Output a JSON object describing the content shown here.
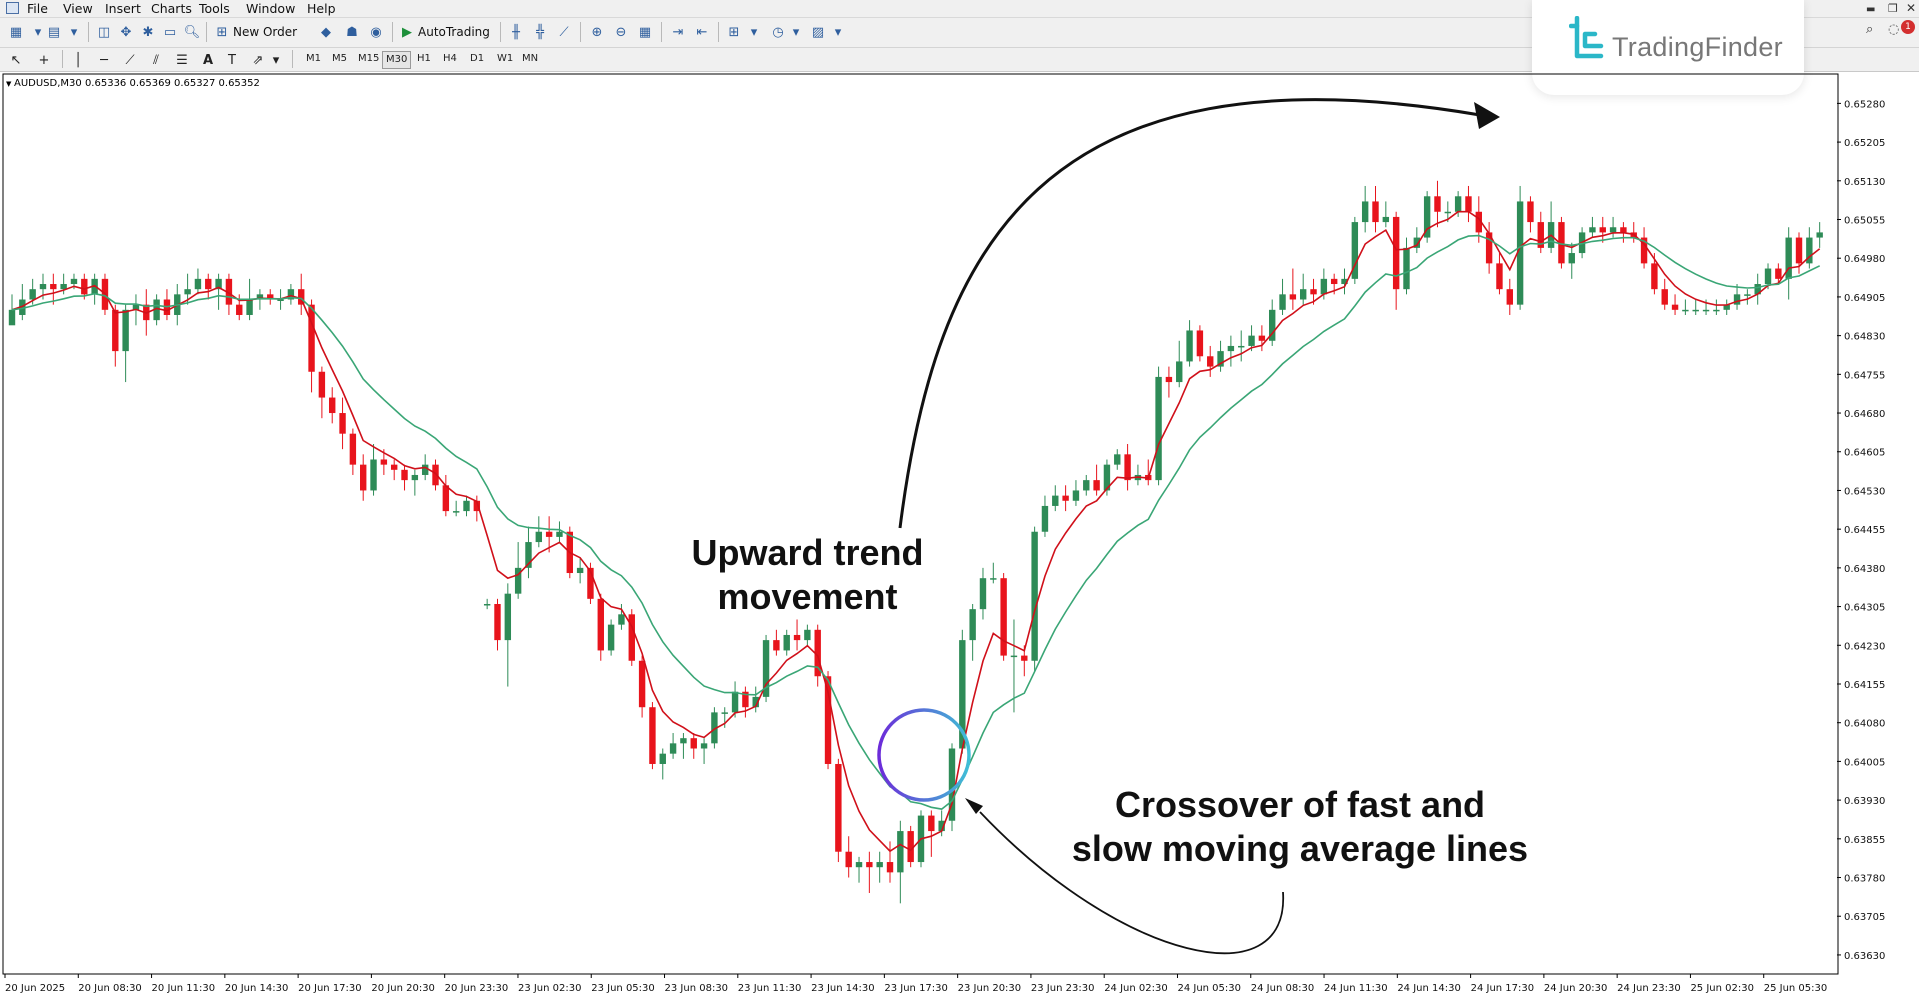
{
  "menu": [
    "File",
    "View",
    "Insert",
    "Charts",
    "Tools",
    "Window",
    "Help"
  ],
  "toolbar": {
    "new_order_label": "New Order",
    "autotrading_label": "AutoTrading",
    "timeframes": [
      "M1",
      "M5",
      "M15",
      "M30",
      "H1",
      "H4",
      "D1",
      "W1",
      "MN"
    ],
    "active_timeframe": "M30",
    "notification_count": "1"
  },
  "brand": {
    "name": "TradingFinder",
    "accent": "#2bb7c8"
  },
  "chart": {
    "header": "AUDUSD,M30  0.65336 0.65369 0.65327 0.65352",
    "bull_color": "#2e8b57",
    "bear_color": "#e8141c",
    "fast_ma_color": "#d0101a",
    "slow_ma_color": "#3aa676"
  },
  "annotations": {
    "upward_line1": "Upward trend",
    "upward_line2": "movement",
    "crossover_line1": "Crossover of fast and",
    "crossover_line2": "slow moving average lines"
  },
  "chart_data": {
    "type": "candlestick",
    "symbol": "AUDUSD",
    "timeframe": "M30",
    "ylim": [
      0.63595,
      0.65335
    ],
    "price_ticks": [
      "0.65280",
      "0.65205",
      "0.65130",
      "0.65055",
      "0.64980",
      "0.64905",
      "0.64830",
      "0.64755",
      "0.64680",
      "0.64605",
      "0.64530",
      "0.64455",
      "0.64380",
      "0.64305",
      "0.64230",
      "0.64155",
      "0.64080",
      "0.64005",
      "0.63930",
      "0.63855",
      "0.63780",
      "0.63705",
      "0.63630"
    ],
    "time_ticks": [
      "20 Jun 2025",
      "20 Jun 08:30",
      "20 Jun 11:30",
      "20 Jun 14:30",
      "20 Jun 17:30",
      "20 Jun 20:30",
      "20 Jun 23:30",
      "23 Jun 02:30",
      "23 Jun 05:30",
      "23 Jun 08:30",
      "23 Jun 11:30",
      "23 Jun 14:30",
      "23 Jun 17:30",
      "23 Jun 20:30",
      "23 Jun 23:30",
      "24 Jun 02:30",
      "24 Jun 05:30",
      "24 Jun 08:30",
      "24 Jun 11:30",
      "24 Jun 14:30",
      "24 Jun 17:30",
      "24 Jun 20:30",
      "24 Jun 23:30",
      "25 Jun 02:30",
      "25 Jun 05:30"
    ],
    "candles": [
      [
        0.6485,
        0.6488,
        0.6486,
        0.6491
      ],
      [
        0.6487,
        0.649,
        0.6486,
        0.6493
      ],
      [
        0.649,
        0.6492,
        0.6489,
        0.6494
      ],
      [
        0.6492,
        0.6493,
        0.649,
        0.6495
      ],
      [
        0.6493,
        0.6492,
        0.6489,
        0.6495
      ],
      [
        0.6492,
        0.6493,
        0.6491,
        0.6495
      ],
      [
        0.6493,
        0.6494,
        0.6492,
        0.6495
      ],
      [
        0.6494,
        0.6491,
        0.649,
        0.6495
      ],
      [
        0.6491,
        0.6494,
        0.6489,
        0.6495
      ],
      [
        0.6494,
        0.6488,
        0.6487,
        0.6495
      ],
      [
        0.6488,
        0.648,
        0.6477,
        0.6489
      ],
      [
        0.648,
        0.6488,
        0.6474,
        0.6489
      ],
      [
        0.6488,
        0.6489,
        0.6485,
        0.6491
      ],
      [
        0.6489,
        0.6486,
        0.6483,
        0.6492
      ],
      [
        0.6486,
        0.649,
        0.6485,
        0.6491
      ],
      [
        0.649,
        0.6487,
        0.6486,
        0.6492
      ],
      [
        0.6487,
        0.6491,
        0.6485,
        0.6493
      ],
      [
        0.6491,
        0.6492,
        0.6489,
        0.6495
      ],
      [
        0.6492,
        0.6494,
        0.6491,
        0.6496
      ],
      [
        0.6494,
        0.6492,
        0.649,
        0.6495
      ],
      [
        0.6492,
        0.6494,
        0.6488,
        0.6495
      ],
      [
        0.6494,
        0.6489,
        0.6487,
        0.6495
      ],
      [
        0.6489,
        0.6487,
        0.6486,
        0.6491
      ],
      [
        0.6487,
        0.649,
        0.6486,
        0.6494
      ],
      [
        0.649,
        0.6491,
        0.6488,
        0.6492
      ],
      [
        0.6491,
        0.649,
        0.6489,
        0.6492
      ],
      [
        0.649,
        0.649,
        0.6488,
        0.6492
      ],
      [
        0.649,
        0.6492,
        0.6489,
        0.6493
      ],
      [
        0.6492,
        0.6489,
        0.6487,
        0.6495
      ],
      [
        0.6489,
        0.6476,
        0.6472,
        0.649
      ],
      [
        0.6476,
        0.6471,
        0.6467,
        0.6477
      ],
      [
        0.6471,
        0.6468,
        0.6466,
        0.6473
      ],
      [
        0.6468,
        0.6464,
        0.6461,
        0.6471
      ],
      [
        0.6464,
        0.6458,
        0.6456,
        0.6465
      ],
      [
        0.6458,
        0.6453,
        0.6451,
        0.646
      ],
      [
        0.6453,
        0.6459,
        0.6452,
        0.6462
      ],
      [
        0.6459,
        0.6458,
        0.6456,
        0.6461
      ],
      [
        0.6458,
        0.6457,
        0.6455,
        0.6459
      ],
      [
        0.6457,
        0.6455,
        0.6453,
        0.6458
      ],
      [
        0.6455,
        0.6456,
        0.6452,
        0.6457
      ],
      [
        0.6456,
        0.6458,
        0.6455,
        0.646
      ],
      [
        0.6458,
        0.6454,
        0.6453,
        0.6459
      ],
      [
        0.6454,
        0.6449,
        0.6448,
        0.6456
      ],
      [
        0.6449,
        0.6449,
        0.6448,
        0.6451
      ],
      [
        0.6449,
        0.6451,
        0.6448,
        0.6452
      ],
      [
        0.6451,
        0.6449,
        0.6447,
        0.6452
      ],
      [
        0.6431,
        0.6431,
        0.643,
        0.6432
      ],
      [
        0.6431,
        0.6424,
        0.6422,
        0.6432
      ],
      [
        0.6424,
        0.6433,
        0.6415,
        0.6435
      ],
      [
        0.6433,
        0.6438,
        0.6432,
        0.6443
      ],
      [
        0.6438,
        0.6443,
        0.6436,
        0.6446
      ],
      [
        0.6443,
        0.6445,
        0.6442,
        0.6448
      ],
      [
        0.6445,
        0.6444,
        0.6441,
        0.6448
      ],
      [
        0.6444,
        0.6445,
        0.6443,
        0.6447
      ],
      [
        0.6445,
        0.6437,
        0.6436,
        0.6446
      ],
      [
        0.6437,
        0.6438,
        0.6435,
        0.644
      ],
      [
        0.6438,
        0.6432,
        0.6431,
        0.6439
      ],
      [
        0.6432,
        0.6422,
        0.642,
        0.6433
      ],
      [
        0.6422,
        0.6427,
        0.6421,
        0.6428
      ],
      [
        0.6427,
        0.6429,
        0.6426,
        0.6431
      ],
      [
        0.6429,
        0.642,
        0.6419,
        0.643
      ],
      [
        0.642,
        0.6411,
        0.6409,
        0.6421
      ],
      [
        0.6411,
        0.64,
        0.6399,
        0.6412
      ],
      [
        0.64,
        0.6402,
        0.6397,
        0.6403
      ],
      [
        0.6402,
        0.6404,
        0.6401,
        0.6406
      ],
      [
        0.6404,
        0.6405,
        0.6401,
        0.6406
      ],
      [
        0.6405,
        0.6403,
        0.6401,
        0.6406
      ],
      [
        0.6403,
        0.6404,
        0.64,
        0.6405
      ],
      [
        0.6404,
        0.641,
        0.6403,
        0.6411
      ],
      [
        0.641,
        0.641,
        0.6407,
        0.6411
      ],
      [
        0.641,
        0.6414,
        0.6409,
        0.6416
      ],
      [
        0.6414,
        0.6411,
        0.6409,
        0.6415
      ],
      [
        0.6411,
        0.6413,
        0.641,
        0.6415
      ],
      [
        0.6413,
        0.6424,
        0.6412,
        0.6425
      ],
      [
        0.6424,
        0.6422,
        0.6421,
        0.6426
      ],
      [
        0.6422,
        0.6425,
        0.6421,
        0.6426
      ],
      [
        0.6425,
        0.6424,
        0.6422,
        0.6428
      ],
      [
        0.6424,
        0.6426,
        0.6423,
        0.6427
      ],
      [
        0.6426,
        0.6417,
        0.6415,
        0.6427
      ],
      [
        0.6417,
        0.64,
        0.6399,
        0.6418
      ],
      [
        0.64,
        0.6383,
        0.6381,
        0.6401
      ],
      [
        0.6383,
        0.638,
        0.6378,
        0.6386
      ],
      [
        0.638,
        0.6381,
        0.6377,
        0.6382
      ],
      [
        0.6381,
        0.638,
        0.6375,
        0.6383
      ],
      [
        0.638,
        0.6381,
        0.6377,
        0.6383
      ],
      [
        0.6381,
        0.6379,
        0.6377,
        0.6385
      ],
      [
        0.6379,
        0.6387,
        0.6373,
        0.6389
      ],
      [
        0.6387,
        0.6381,
        0.638,
        0.6388
      ],
      [
        0.6381,
        0.639,
        0.638,
        0.6391
      ],
      [
        0.639,
        0.6387,
        0.6382,
        0.6391
      ],
      [
        0.6387,
        0.6389,
        0.6386,
        0.6391
      ],
      [
        0.6389,
        0.6403,
        0.6387,
        0.6404
      ],
      [
        0.6403,
        0.6424,
        0.6402,
        0.6426
      ],
      [
        0.6424,
        0.643,
        0.642,
        0.6431
      ],
      [
        0.643,
        0.6436,
        0.6428,
        0.6438
      ],
      [
        0.6436,
        0.6436,
        0.6435,
        0.6439
      ],
      [
        0.6436,
        0.6421,
        0.642,
        0.6437
      ],
      [
        0.6421,
        0.6421,
        0.641,
        0.6428
      ],
      [
        0.6421,
        0.642,
        0.6417,
        0.6423
      ],
      [
        0.642,
        0.6445,
        0.6418,
        0.6446
      ],
      [
        0.6445,
        0.645,
        0.6444,
        0.6452
      ],
      [
        0.645,
        0.6452,
        0.6449,
        0.6454
      ],
      [
        0.6452,
        0.6451,
        0.6449,
        0.6454
      ],
      [
        0.6451,
        0.6453,
        0.645,
        0.6455
      ],
      [
        0.6453,
        0.6455,
        0.6452,
        0.6456
      ],
      [
        0.6455,
        0.6453,
        0.6452,
        0.6458
      ],
      [
        0.6453,
        0.6458,
        0.6452,
        0.6459
      ],
      [
        0.6458,
        0.646,
        0.6457,
        0.6461
      ],
      [
        0.646,
        0.6455,
        0.6453,
        0.6462
      ],
      [
        0.6455,
        0.6456,
        0.6454,
        0.6458
      ],
      [
        0.6456,
        0.6455,
        0.6454,
        0.6459
      ],
      [
        0.6455,
        0.6475,
        0.6454,
        0.6477
      ],
      [
        0.6475,
        0.6474,
        0.6471,
        0.6477
      ],
      [
        0.6474,
        0.6478,
        0.6473,
        0.6482
      ],
      [
        0.6478,
        0.6484,
        0.6477,
        0.6486
      ],
      [
        0.6484,
        0.6479,
        0.6478,
        0.6485
      ],
      [
        0.6479,
        0.6477,
        0.6475,
        0.6481
      ],
      [
        0.6477,
        0.648,
        0.6476,
        0.6482
      ],
      [
        0.648,
        0.6481,
        0.6477,
        0.6483
      ],
      [
        0.6481,
        0.6481,
        0.6478,
        0.6484
      ],
      [
        0.6481,
        0.6483,
        0.648,
        0.6485
      ],
      [
        0.6483,
        0.6482,
        0.648,
        0.6485
      ],
      [
        0.6482,
        0.6488,
        0.6481,
        0.649
      ],
      [
        0.6488,
        0.6491,
        0.6487,
        0.6494
      ],
      [
        0.6491,
        0.649,
        0.6488,
        0.6496
      ],
      [
        0.649,
        0.6492,
        0.6489,
        0.6495
      ],
      [
        0.6492,
        0.6491,
        0.6489,
        0.6494
      ],
      [
        0.6491,
        0.6494,
        0.649,
        0.6496
      ],
      [
        0.6494,
        0.6493,
        0.6491,
        0.6495
      ],
      [
        0.6493,
        0.6494,
        0.6491,
        0.6496
      ],
      [
        0.6494,
        0.6505,
        0.6493,
        0.6506
      ],
      [
        0.6505,
        0.6509,
        0.6503,
        0.6512
      ],
      [
        0.6509,
        0.6505,
        0.6503,
        0.6512
      ],
      [
        0.6505,
        0.6506,
        0.6504,
        0.6509
      ],
      [
        0.6506,
        0.6492,
        0.6488,
        0.6507
      ],
      [
        0.6492,
        0.65,
        0.6491,
        0.6502
      ],
      [
        0.65,
        0.6502,
        0.6499,
        0.6504
      ],
      [
        0.6502,
        0.651,
        0.6501,
        0.6511
      ],
      [
        0.651,
        0.6507,
        0.6504,
        0.6513
      ],
      [
        0.6507,
        0.6507,
        0.6505,
        0.6509
      ],
      [
        0.6507,
        0.651,
        0.6506,
        0.6511
      ],
      [
        0.651,
        0.6507,
        0.6505,
        0.6512
      ],
      [
        0.6507,
        0.6503,
        0.6501,
        0.651
      ],
      [
        0.6503,
        0.6497,
        0.6495,
        0.6505
      ],
      [
        0.6497,
        0.6492,
        0.6491,
        0.6499
      ],
      [
        0.6492,
        0.6489,
        0.6487,
        0.6494
      ],
      [
        0.6489,
        0.6509,
        0.6488,
        0.6512
      ],
      [
        0.6509,
        0.6505,
        0.6503,
        0.651
      ],
      [
        0.6505,
        0.65,
        0.6499,
        0.6507
      ],
      [
        0.65,
        0.6505,
        0.6499,
        0.6509
      ],
      [
        0.6505,
        0.6497,
        0.6496,
        0.6506
      ],
      [
        0.6497,
        0.6499,
        0.6494,
        0.6501
      ],
      [
        0.6499,
        0.6503,
        0.6498,
        0.6504
      ],
      [
        0.6503,
        0.6504,
        0.6502,
        0.6506
      ],
      [
        0.6504,
        0.6503,
        0.6501,
        0.6506
      ],
      [
        0.6503,
        0.6504,
        0.6502,
        0.6506
      ],
      [
        0.6504,
        0.6503,
        0.6501,
        0.6505
      ],
      [
        0.6503,
        0.6502,
        0.6501,
        0.6505
      ],
      [
        0.6502,
        0.6497,
        0.6496,
        0.6504
      ],
      [
        0.6497,
        0.6492,
        0.6491,
        0.6499
      ],
      [
        0.6492,
        0.6489,
        0.6488,
        0.6494
      ],
      [
        0.6489,
        0.6488,
        0.6487,
        0.6491
      ],
      [
        0.6488,
        0.6488,
        0.6487,
        0.649
      ],
      [
        0.6488,
        0.6488,
        0.6487,
        0.649
      ],
      [
        0.6488,
        0.6488,
        0.6487,
        0.649
      ],
      [
        0.6488,
        0.6488,
        0.6487,
        0.649
      ],
      [
        0.6488,
        0.6489,
        0.6487,
        0.649
      ],
      [
        0.6489,
        0.6491,
        0.6488,
        0.6493
      ],
      [
        0.6491,
        0.6491,
        0.6489,
        0.6492
      ],
      [
        0.6491,
        0.6493,
        0.6489,
        0.6495
      ],
      [
        0.6493,
        0.6496,
        0.6492,
        0.6497
      ],
      [
        0.6496,
        0.6494,
        0.6493,
        0.6497
      ],
      [
        0.6494,
        0.6502,
        0.649,
        0.6504
      ],
      [
        0.6502,
        0.6497,
        0.6495,
        0.6503
      ],
      [
        0.6497,
        0.6502,
        0.6496,
        0.6504
      ],
      [
        0.6502,
        0.6503,
        0.65,
        0.6505
      ]
    ],
    "series": [
      {
        "name": "",
        "color": "#d0101a",
        "period": 5
      },
      {
        "name": "",
        "color": "#3aa676",
        "period": 14
      }
    ]
  }
}
